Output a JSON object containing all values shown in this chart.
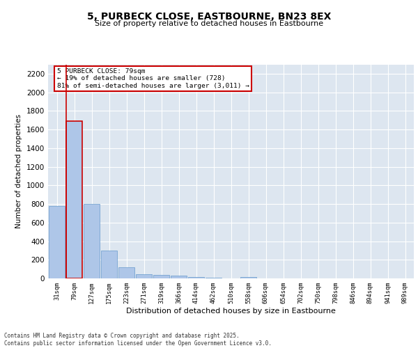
{
  "title": "5, PURBECK CLOSE, EASTBOURNE, BN23 8EX",
  "subtitle": "Size of property relative to detached houses in Eastbourne",
  "xlabel": "Distribution of detached houses by size in Eastbourne",
  "ylabel": "Number of detached properties",
  "categories": [
    "31sqm",
    "79sqm",
    "127sqm",
    "175sqm",
    "223sqm",
    "271sqm",
    "319sqm",
    "366sqm",
    "414sqm",
    "462sqm",
    "510sqm",
    "558sqm",
    "606sqm",
    "654sqm",
    "702sqm",
    "750sqm",
    "798sqm",
    "846sqm",
    "894sqm",
    "941sqm",
    "989sqm"
  ],
  "values": [
    780,
    1690,
    800,
    300,
    120,
    45,
    38,
    32,
    15,
    5,
    0,
    18,
    0,
    0,
    0,
    0,
    0,
    0,
    0,
    0,
    0
  ],
  "bar_color": "#aec6e8",
  "bar_edge_color": "#6699cc",
  "highlight_bar_index": 1,
  "highlight_line_color": "#cc0000",
  "annotation_text": "5 PURBECK CLOSE: 79sqm\n← 19% of detached houses are smaller (728)\n81% of semi-detached houses are larger (3,011) →",
  "annotation_box_color": "#cc0000",
  "ylim": [
    0,
    2300
  ],
  "yticks": [
    0,
    200,
    400,
    600,
    800,
    1000,
    1200,
    1400,
    1600,
    1800,
    2000,
    2200
  ],
  "background_color": "#dde6f0",
  "grid_color": "#ffffff",
  "footer_line1": "Contains HM Land Registry data © Crown copyright and database right 2025.",
  "footer_line2": "Contains public sector information licensed under the Open Government Licence v3.0."
}
